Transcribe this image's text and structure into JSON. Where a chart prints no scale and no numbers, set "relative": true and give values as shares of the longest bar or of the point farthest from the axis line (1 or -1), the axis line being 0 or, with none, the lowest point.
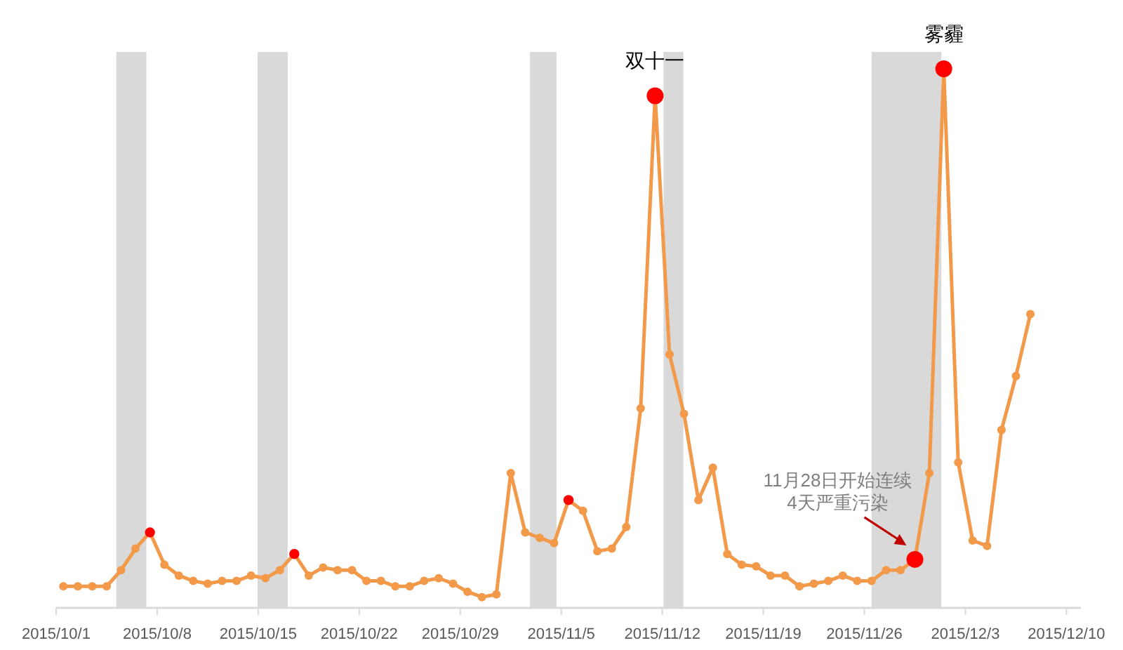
{
  "chart_data": {
    "type": "line",
    "relative": true,
    "marker": "circle",
    "line_style": "solid",
    "x": [
      "2015-10-01T12:00",
      "2015-10-02T12:00",
      "2015-10-03T12:00",
      "2015-10-04T12:00",
      "2015-10-05T12:00",
      "2015-10-06T12:00",
      "2015-10-07T12:00",
      "2015-10-08T12:00",
      "2015-10-09T12:00",
      "2015-10-10T12:00",
      "2015-10-11T12:00",
      "2015-10-12T12:00",
      "2015-10-13T12:00",
      "2015-10-14T12:00",
      "2015-10-15T12:00",
      "2015-10-16T12:00",
      "2015-10-17T12:00",
      "2015-10-18T12:00",
      "2015-10-19T12:00",
      "2015-10-20T12:00",
      "2015-10-21T12:00",
      "2015-10-22T12:00",
      "2015-10-23T12:00",
      "2015-10-24T12:00",
      "2015-10-25T12:00",
      "2015-10-26T12:00",
      "2015-10-27T12:00",
      "2015-10-28T12:00",
      "2015-10-29T12:00",
      "2015-10-30T12:00",
      "2015-10-31T12:00",
      "2015-11-01T12:00",
      "2015-11-02T12:00",
      "2015-11-03T12:00",
      "2015-11-04T12:00",
      "2015-11-05T12:00",
      "2015-11-06T12:00",
      "2015-11-07T12:00",
      "2015-11-08T12:00",
      "2015-11-09T12:00",
      "2015-11-10T12:00",
      "2015-11-11T12:00",
      "2015-11-12T12:00",
      "2015-11-13T12:00",
      "2015-11-14T12:00",
      "2015-11-15T12:00",
      "2015-11-16T12:00",
      "2015-11-17T12:00",
      "2015-11-18T12:00",
      "2015-11-19T12:00",
      "2015-11-20T12:00",
      "2015-11-21T12:00",
      "2015-11-22T12:00",
      "2015-11-23T12:00",
      "2015-11-24T12:00",
      "2015-11-25T12:00",
      "2015-11-26T12:00",
      "2015-11-27T12:00",
      "2015-11-28T12:00",
      "2015-11-29T12:00",
      "2015-11-30T12:00",
      "2015-12-01T12:00",
      "2015-12-02T12:00",
      "2015-12-03T12:00",
      "2015-12-04T12:00",
      "2015-12-05T12:00",
      "2015-12-06T12:00",
      "2015-12-07T12:00"
    ],
    "series": [
      {
        "color": "#f2994a",
        "values": [
          0.04,
          0.04,
          0.04,
          0.04,
          0.07,
          0.11,
          0.14,
          0.08,
          0.06,
          0.05,
          0.045,
          0.05,
          0.05,
          0.06,
          0.055,
          0.07,
          0.1,
          0.06,
          0.075,
          0.07,
          0.07,
          0.05,
          0.05,
          0.04,
          0.04,
          0.05,
          0.055,
          0.045,
          0.03,
          0.02,
          0.025,
          0.25,
          0.14,
          0.13,
          0.12,
          0.2,
          0.18,
          0.105,
          0.11,
          0.15,
          0.37,
          0.95,
          0.47,
          0.36,
          0.2,
          0.26,
          0.1,
          0.08,
          0.077,
          0.06,
          0.06,
          0.04,
          0.045,
          0.05,
          0.06,
          0.05,
          0.05,
          0.07,
          0.07,
          0.09,
          0.25,
          1,
          0.27,
          0.125,
          0.115,
          0.33,
          0.43,
          0.545
        ],
        "colors": [
          "#f2994a",
          "#f2994a",
          "#f2994a",
          "#f2994a",
          "#f2994a",
          "#f2994a",
          "#ff0000",
          "#f2994a",
          "#f2994a",
          "#f2994a",
          "#f2994a",
          "#f2994a",
          "#f2994a",
          "#f2994a",
          "#f2994a",
          "#f2994a",
          "#ff0000",
          "#f2994a",
          "#f2994a",
          "#f2994a",
          "#f2994a",
          "#f2994a",
          "#f2994a",
          "#f2994a",
          "#f2994a",
          "#f2994a",
          "#f2994a",
          "#f2994a",
          "#f2994a",
          "#f2994a",
          "#f2994a",
          "#f2994a",
          "#f2994a",
          "#f2994a",
          "#f2994a",
          "#ff0000",
          "#f2994a",
          "#f2994a",
          "#f2994a",
          "#f2994a",
          "#f2994a",
          "#ff0000",
          "#f2994a",
          "#f2994a",
          "#f2994a",
          "#f2994a",
          "#f2994a",
          "#f2994a",
          "#f2994a",
          "#f2994a",
          "#f2994a",
          "#f2994a",
          "#f2994a",
          "#f2994a",
          "#f2994a",
          "#f2994a",
          "#f2994a",
          "#f2994a",
          "#f2994a",
          "#ff0000",
          "#f2994a",
          "#ff0000",
          "#f2994a",
          "#f2994a",
          "#f2994a",
          "#f2994a",
          "#f2994a",
          "#f2994a"
        ]
      }
    ],
    "xlim": [
      "2015-10-01",
      "2015-12-11"
    ],
    "xticks": [
      {
        "value": "2015-10-01",
        "label": "2015/10/1"
      },
      {
        "value": "2015-10-08",
        "label": "2015/10/8"
      },
      {
        "value": "2015-10-15",
        "label": "2015/10/15"
      },
      {
        "value": "2015-10-22",
        "label": "2015/10/22"
      },
      {
        "value": "2015-10-29",
        "label": "2015/10/29"
      },
      {
        "value": "2015-11-05",
        "label": "2015/11/5"
      },
      {
        "value": "2015-11-12",
        "label": "2015/11/12"
      },
      {
        "value": "2015-11-19",
        "label": "2015/11/19"
      },
      {
        "value": "2015-11-26",
        "label": "2015/11/26"
      },
      {
        "value": "2015-12-03",
        "label": "2015/12/3"
      },
      {
        "value": "2015-12-10",
        "label": "2015/12/10"
      }
    ],
    "bands": [
      {
        "axis": "x",
        "from": "2015-10-05T04:00",
        "to": "2015-10-07T06:00",
        "color": "#d9d9d9"
      },
      {
        "axis": "x",
        "from": "2015-10-14T23:00",
        "to": "2015-10-17T01:00",
        "color": "#d9d9d9"
      },
      {
        "axis": "x",
        "from": "2015-11-02T20:00",
        "to": "2015-11-04T16:00",
        "color": "#d9d9d9"
      },
      {
        "axis": "x",
        "from": "2015-11-12T02:00",
        "to": "2015-11-13T11:00",
        "color": "#d9d9d9"
      },
      {
        "axis": "x",
        "from": "2015-11-26T12:00",
        "to": "2015-12-01T08:00",
        "color": "#d9d9d9"
      }
    ],
    "annotations": [
      {
        "text": "双十一",
        "x": "2015-11-11T12:00",
        "y": 0.95
      },
      {
        "text": "雾霾",
        "x": "2015-12-01T12:00",
        "y": 1
      },
      {
        "text": "11月28日开始连续\n4天严重污染",
        "x": "2015-11-29T12:00",
        "y": 0.09
      }
    ]
  }
}
